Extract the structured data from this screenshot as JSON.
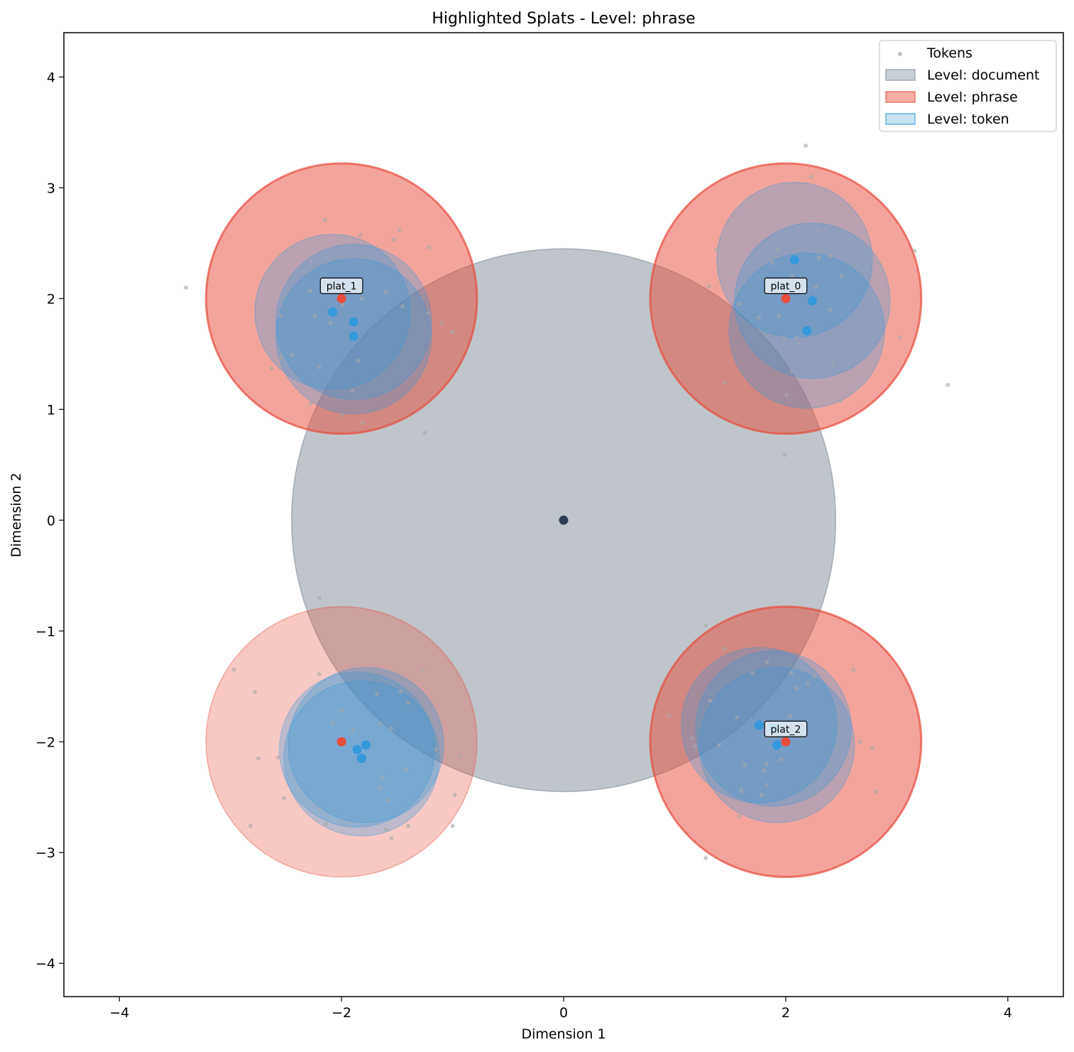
{
  "chart_data": {
    "type": "scatter",
    "title": "Highlighted Splats - Level: phrase",
    "xlabel": "Dimension 1",
    "ylabel": "Dimension 2",
    "xlim": [
      -4.5,
      4.5
    ],
    "ylim": [
      -4.3,
      4.4
    ],
    "xticks": [
      -4,
      -2,
      0,
      2,
      4
    ],
    "yticks": [
      -4,
      -3,
      -2,
      -1,
      0,
      1,
      2,
      3,
      4
    ],
    "xtick_labels": [
      "−4",
      "−2",
      "0",
      "2",
      "4"
    ],
    "ytick_labels": [
      "−4",
      "−3",
      "−2",
      "−1",
      "0",
      "1",
      "2",
      "3",
      "4"
    ],
    "grid": false,
    "legend_position": "top-right",
    "legend": [
      {
        "label": "Tokens",
        "kind": "marker",
        "color": "#b0b0b0"
      },
      {
        "label": "Level: document",
        "kind": "patch",
        "color": "#8492a4",
        "edge": "#8492a4"
      },
      {
        "label": "Level: phrase",
        "kind": "patch",
        "color": "#e74c3c",
        "edge": "#e74c3c"
      },
      {
        "label": "Level: token",
        "kind": "patch",
        "color": "#85c1e9",
        "edge": "#3498db"
      }
    ],
    "colors": {
      "document": "#2c3e50",
      "phrase": "#e74c3c",
      "token": "#3498db",
      "tokens": "#a9a9a9"
    },
    "splats": {
      "document": [
        {
          "x": 0,
          "y": 0,
          "r": 2.45
        }
      ],
      "phrase": [
        {
          "x": 2,
          "y": 2,
          "r": 1.22,
          "label": "plat_0",
          "highlighted": true
        },
        {
          "x": -2,
          "y": 2,
          "r": 1.22,
          "label": "plat_1",
          "highlighted": true
        },
        {
          "x": 2,
          "y": -2,
          "r": 1.22,
          "label": "plat_2",
          "highlighted": true
        },
        {
          "x": -2,
          "y": -2,
          "r": 1.22,
          "highlighted": false
        }
      ],
      "token": [
        {
          "x": 2.08,
          "y": 2.35,
          "r": 0.7
        },
        {
          "x": 2.24,
          "y": 1.98,
          "r": 0.7
        },
        {
          "x": 2.19,
          "y": 1.71,
          "r": 0.7
        },
        {
          "x": -2.08,
          "y": 1.88,
          "r": 0.7
        },
        {
          "x": -1.89,
          "y": 1.79,
          "r": 0.7
        },
        {
          "x": -1.89,
          "y": 1.66,
          "r": 0.7
        },
        {
          "x": 1.76,
          "y": -1.85,
          "r": 0.7
        },
        {
          "x": 1.89,
          "y": -1.88,
          "r": 0.7
        },
        {
          "x": 1.92,
          "y": -2.03,
          "r": 0.7
        },
        {
          "x": -1.78,
          "y": -2.03,
          "r": 0.7
        },
        {
          "x": -1.86,
          "y": -2.07,
          "r": 0.7
        },
        {
          "x": -1.82,
          "y": -2.15,
          "r": 0.7
        }
      ]
    },
    "tokens": [
      [
        -3.4,
        2.1
      ],
      [
        -2.15,
        2.71
      ],
      [
        -2.27,
        2.34
      ],
      [
        -1.83,
        2.57
      ],
      [
        -1.53,
        2.53
      ],
      [
        -1.48,
        2.62
      ],
      [
        -1.21,
        2.46
      ],
      [
        -2.73,
        1.91
      ],
      [
        -2.55,
        1.85
      ],
      [
        -2.28,
        2.07
      ],
      [
        -2.24,
        1.84
      ],
      [
        -2.1,
        1.78
      ],
      [
        -1.99,
        1.94
      ],
      [
        -1.82,
        2.0
      ],
      [
        -1.6,
        2.06
      ],
      [
        -1.45,
        1.93
      ],
      [
        -1.22,
        1.87
      ],
      [
        -1.1,
        1.78
      ],
      [
        -1.0,
        1.7
      ],
      [
        -2.63,
        1.37
      ],
      [
        -2.45,
        1.49
      ],
      [
        -2.55,
        1.47
      ],
      [
        -2.2,
        1.38
      ],
      [
        -1.85,
        1.44
      ],
      [
        -1.9,
        1.17
      ],
      [
        -2.28,
        1.05
      ],
      [
        -2.0,
        0.95
      ],
      [
        -1.81,
        0.88
      ],
      [
        -1.25,
        0.79
      ],
      [
        -2.2,
        -0.7
      ],
      [
        1.37,
        2.44
      ],
      [
        1.5,
        2.7
      ],
      [
        1.65,
        2.88
      ],
      [
        1.83,
        2.82
      ],
      [
        1.92,
        2.44
      ],
      [
        2.07,
        2.74
      ],
      [
        2.18,
        3.38
      ],
      [
        2.23,
        3.1
      ],
      [
        2.28,
        2.6
      ],
      [
        2.3,
        2.37
      ],
      [
        2.4,
        2.38
      ],
      [
        3.16,
        2.43
      ],
      [
        1.5,
        2.22
      ],
      [
        1.31,
        2.11
      ],
      [
        1.58,
        1.95
      ],
      [
        1.88,
        2.32
      ],
      [
        2.06,
        2.2
      ],
      [
        2.27,
        2.1
      ],
      [
        2.5,
        2.21
      ],
      [
        2.4,
        1.9
      ],
      [
        1.76,
        1.83
      ],
      [
        1.94,
        1.84
      ],
      [
        2.1,
        1.65
      ],
      [
        2.12,
        1.59
      ],
      [
        2.42,
        1.4
      ],
      [
        2.5,
        1.08
      ],
      [
        3.03,
        1.65
      ],
      [
        1.45,
        1.24
      ],
      [
        1.98,
        1.65
      ],
      [
        2.01,
        1.13
      ],
      [
        2.05,
        1.34
      ],
      [
        3.46,
        1.22
      ],
      [
        1.99,
        0.59
      ],
      [
        -2.97,
        -1.35
      ],
      [
        -2.78,
        -1.55
      ],
      [
        -2.75,
        -2.15
      ],
      [
        -2.57,
        -2.14
      ],
      [
        -2.52,
        -2.51
      ],
      [
        -2.82,
        -2.76
      ],
      [
        -2.2,
        -1.39
      ],
      [
        -2.08,
        -1.83
      ],
      [
        -2.0,
        -1.72
      ],
      [
        -1.9,
        -1.9
      ],
      [
        -1.68,
        -1.57
      ],
      [
        -1.65,
        -1.84
      ],
      [
        -1.55,
        -1.88
      ],
      [
        -1.47,
        -1.55
      ],
      [
        -1.4,
        -1.65
      ],
      [
        -1.27,
        -1.35
      ],
      [
        -1.15,
        -2.07
      ],
      [
        -1.42,
        -2.25
      ],
      [
        -1.63,
        -2.32
      ],
      [
        -1.65,
        -2.42
      ],
      [
        -1.58,
        -2.53
      ],
      [
        -1.6,
        -2.79
      ],
      [
        -1.55,
        -2.87
      ],
      [
        -1.4,
        -2.76
      ],
      [
        -2.2,
        -2.61
      ],
      [
        -2.14,
        -2.74
      ],
      [
        -1.0,
        -2.76
      ],
      [
        -0.93,
        -2.13
      ],
      [
        -0.98,
        -2.48
      ],
      [
        0.95,
        -1.76
      ],
      [
        1.16,
        -1.97
      ],
      [
        1.32,
        -1.63
      ],
      [
        1.28,
        -0.95
      ],
      [
        1.45,
        -1.16
      ],
      [
        1.7,
        -1.38
      ],
      [
        1.83,
        -1.28
      ],
      [
        2.05,
        -1.38
      ],
      [
        2.1,
        -1.52
      ],
      [
        2.2,
        -1.47
      ],
      [
        2.26,
        -1.41
      ],
      [
        2.61,
        -1.35
      ],
      [
        2.67,
        -2.0
      ],
      [
        2.78,
        -2.06
      ],
      [
        2.81,
        -2.45
      ],
      [
        2.04,
        -1.77
      ],
      [
        1.96,
        -2.16
      ],
      [
        1.83,
        -2.2
      ],
      [
        1.8,
        -2.26
      ],
      [
        1.83,
        -2.39
      ],
      [
        1.78,
        -2.48
      ],
      [
        1.6,
        -2.44
      ],
      [
        1.58,
        -2.67
      ],
      [
        1.63,
        -2.21
      ],
      [
        1.56,
        -1.78
      ],
      [
        1.4,
        -2.03
      ],
      [
        1.28,
        -3.05
      ],
      [
        1.18,
        -2.04
      ]
    ]
  }
}
